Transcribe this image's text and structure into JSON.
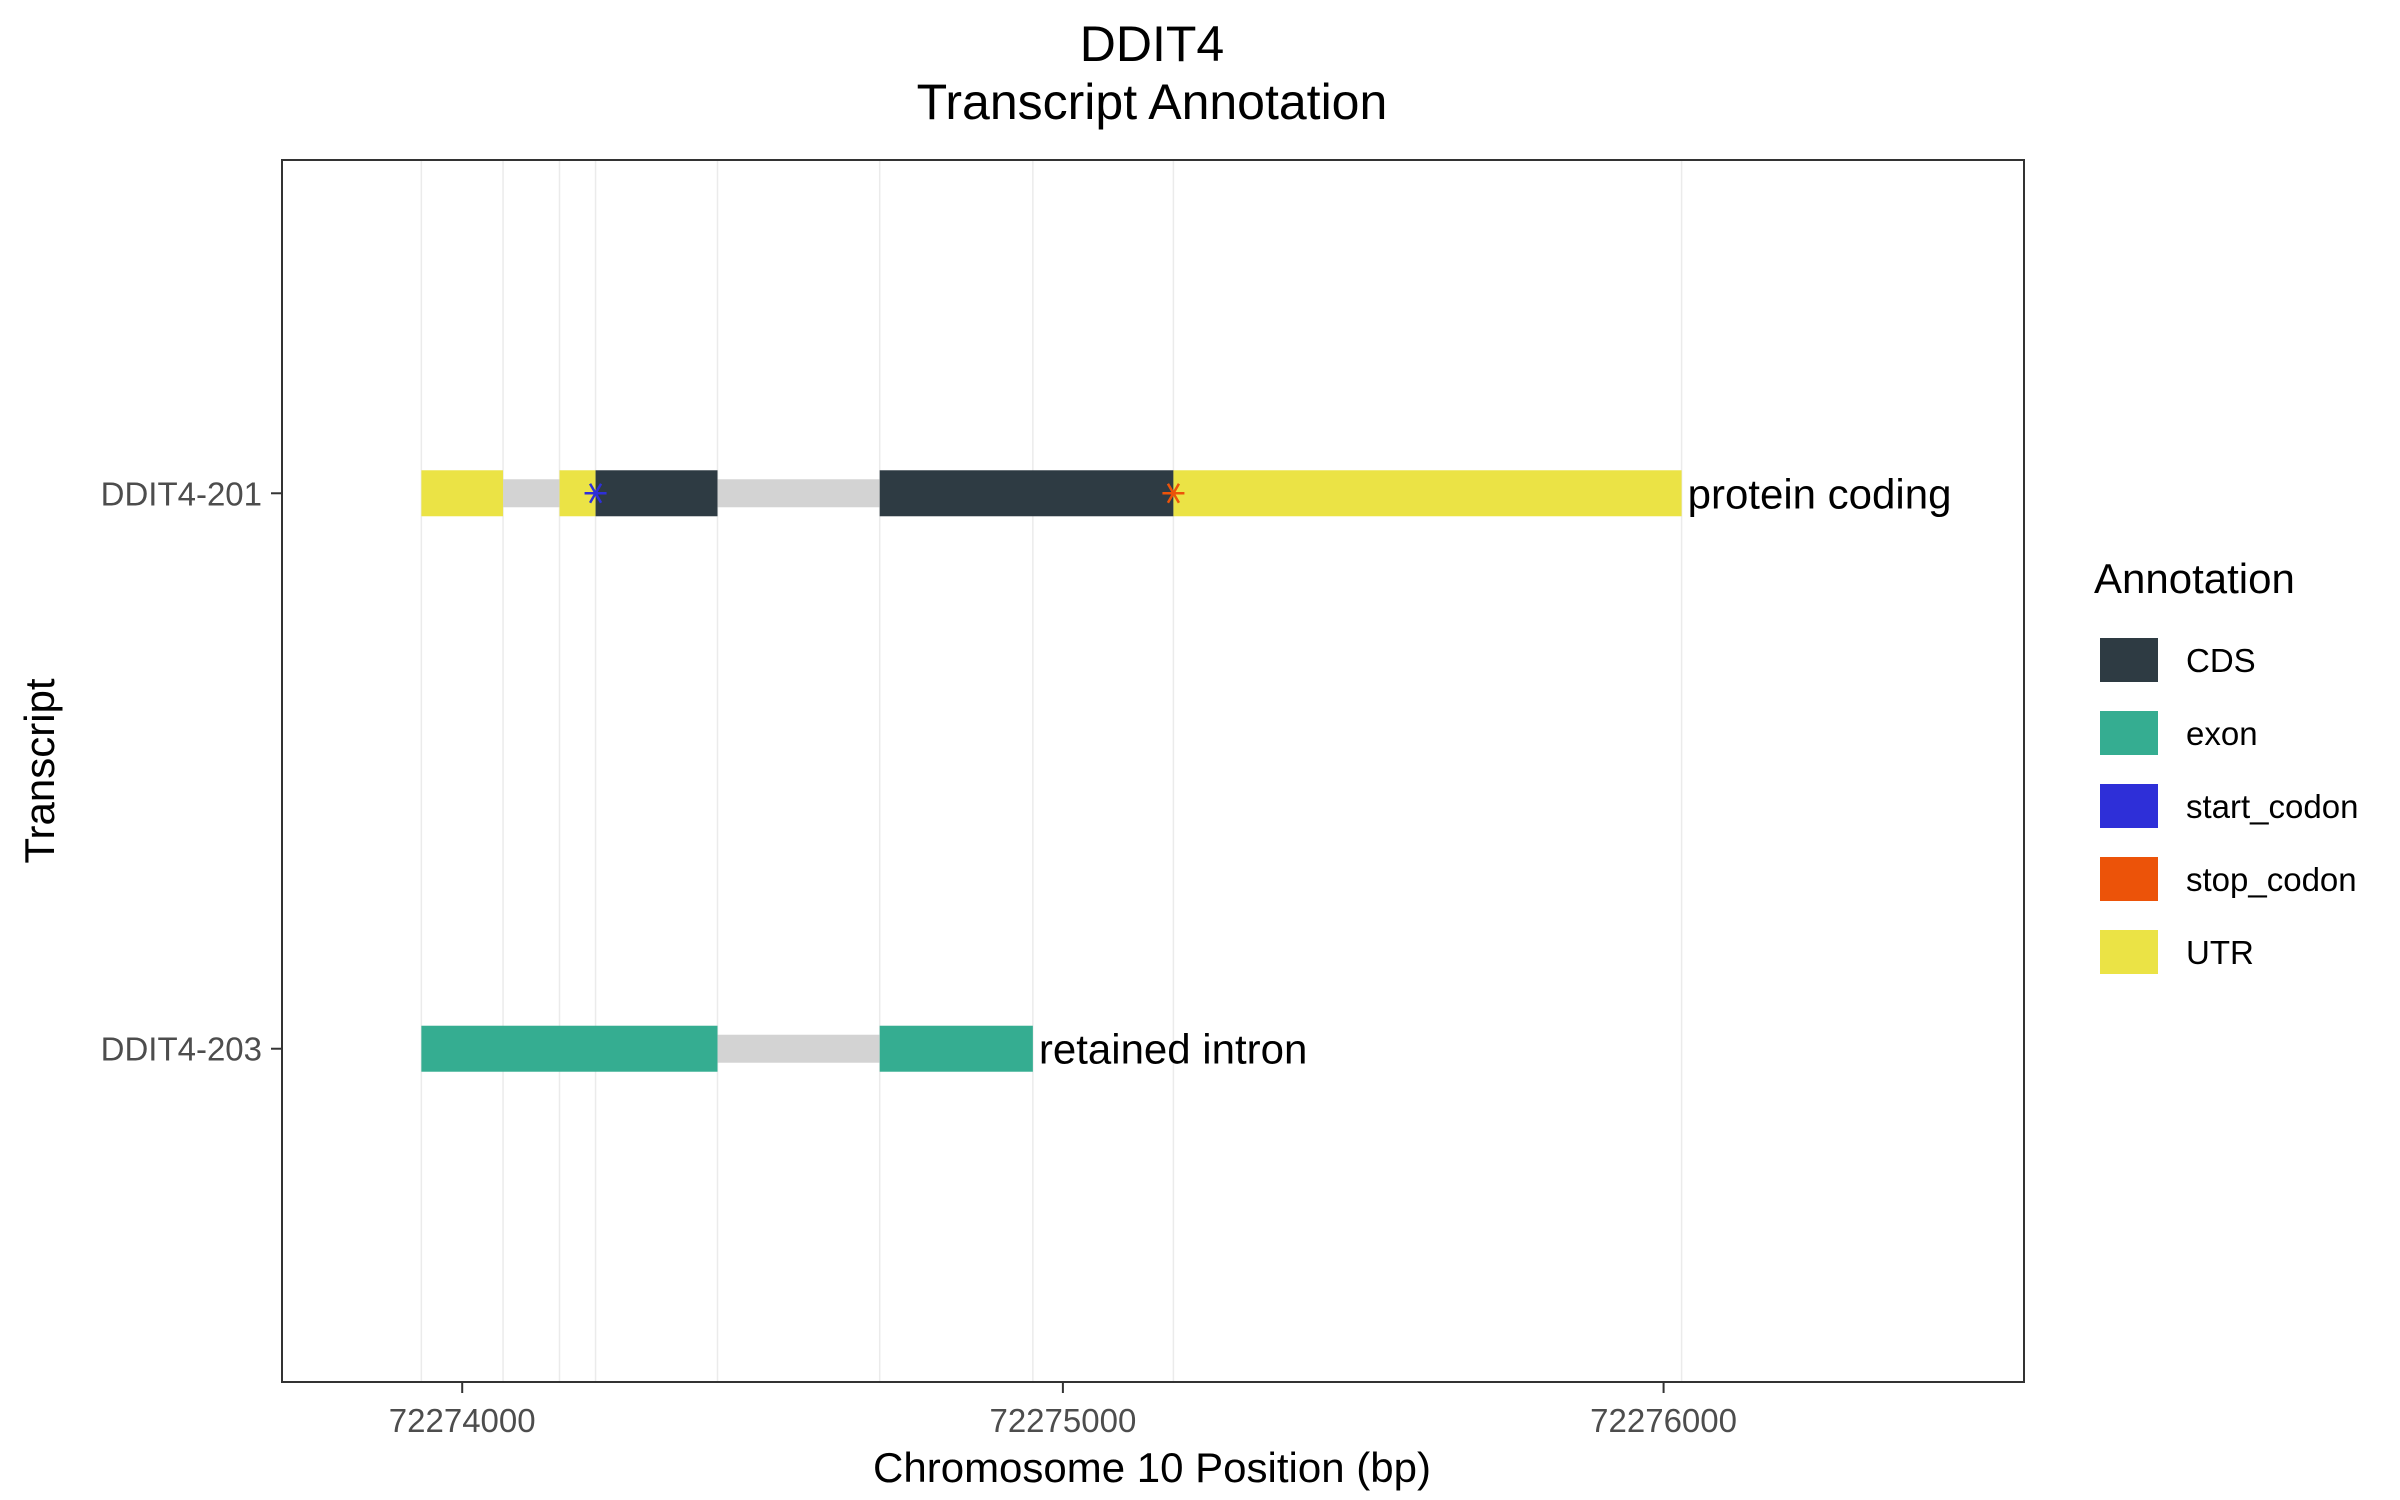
{
  "chart_data": {
    "type": "gene-structure",
    "title_lines": [
      "DDIT4",
      "Transcript Annotation"
    ],
    "xlabel": "Chromosome 10 Position (bp)",
    "ylabel": "Transcript",
    "xlim": [
      72273700,
      72276600
    ],
    "x_ticks": [
      72274000,
      72275000,
      72276000
    ],
    "x_tick_labels": [
      "72274000",
      "72275000",
      "72276000"
    ],
    "grid": true,
    "legend": {
      "title": "Annotation",
      "placement": "right",
      "items": [
        {
          "name": "CDS",
          "color": "#2e3b43"
        },
        {
          "name": "exon",
          "color": "#35ad91"
        },
        {
          "name": "start_codon",
          "color": "#2e2fd8"
        },
        {
          "name": "stop_codon",
          "color": "#ec5309"
        },
        {
          "name": "UTR",
          "color": "#ebe345"
        }
      ]
    },
    "intron_color": "#d3d3d3",
    "transcripts": [
      {
        "name": "DDIT4-203",
        "label": "retained intron",
        "introns": [
          [
            72274425,
            72274695
          ]
        ],
        "features": [
          {
            "type": "exon",
            "start": 72273932,
            "end": 72274425
          },
          {
            "type": "exon",
            "start": 72274695,
            "end": 72274950
          }
        ],
        "codons": []
      },
      {
        "name": "DDIT4-201",
        "label": "protein coding",
        "introns": [
          [
            72274068,
            72274162
          ],
          [
            72274425,
            72274695
          ]
        ],
        "features": [
          {
            "type": "UTR",
            "start": 72273932,
            "end": 72274068
          },
          {
            "type": "UTR",
            "start": 72274162,
            "end": 72274222
          },
          {
            "type": "CDS",
            "start": 72274222,
            "end": 72274425
          },
          {
            "type": "CDS",
            "start": 72274695,
            "end": 72275184
          },
          {
            "type": "UTR",
            "start": 72275184,
            "end": 72276030
          }
        ],
        "codons": [
          {
            "type": "start_codon",
            "pos": 72274222
          },
          {
            "type": "stop_codon",
            "pos": 72275184
          }
        ]
      }
    ]
  }
}
